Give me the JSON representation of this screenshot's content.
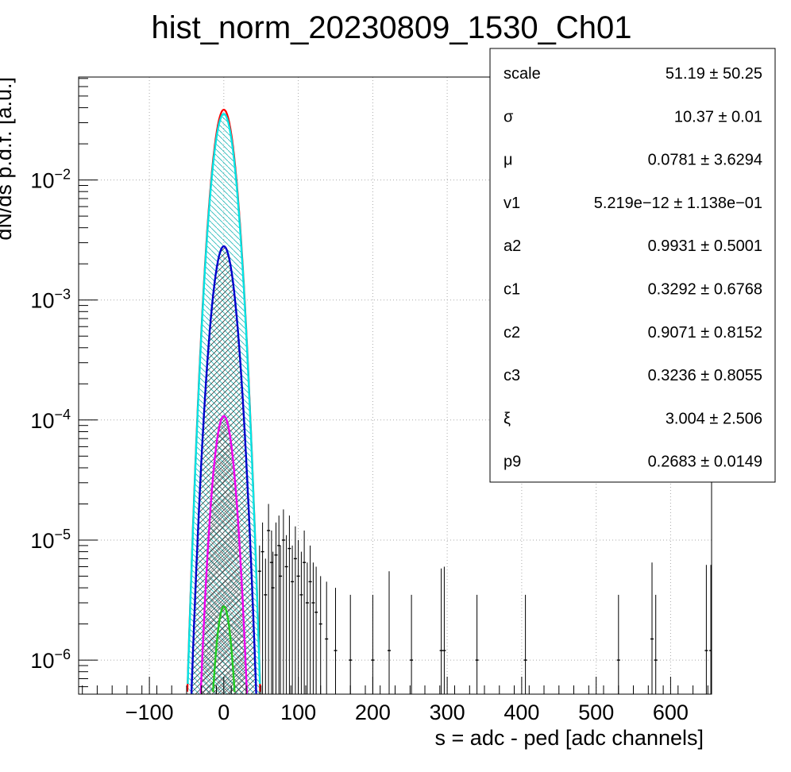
{
  "chart_data": {
    "type": "histogram",
    "title": "hist_norm_20230809_1530_Ch01",
    "xlabel": "s = adc - ped [adc channels]",
    "ylabel": "dN/ds p.d.f. [a.u.]",
    "xlim": [
      -195,
      655
    ],
    "ylim": [
      5.2e-07,
      0.072
    ],
    "yscale": "log",
    "grid": true,
    "x_ticks": [
      -100,
      0,
      100,
      200,
      300,
      400,
      500,
      600
    ],
    "x_tick_labels": [
      "−100",
      "0",
      "100",
      "200",
      "300",
      "400",
      "500",
      "600"
    ],
    "y_ticks": [
      {
        "value": 1e-06,
        "base": "10",
        "exp": "−6"
      },
      {
        "value": 1e-05,
        "base": "10",
        "exp": "−5"
      },
      {
        "value": 0.0001,
        "base": "10",
        "exp": "−4"
      },
      {
        "value": 0.001,
        "base": "10",
        "exp": "−3"
      },
      {
        "value": 0.01,
        "base": "10",
        "exp": "−2"
      }
    ],
    "series": [
      {
        "color": "#ff0000",
        "peak": 0.0385,
        "mu": 0,
        "sigma": 10.37
      },
      {
        "color": "#00e5e5",
        "peak": 0.0355,
        "mu": 0,
        "sigma": 10.37
      },
      {
        "color": "#0000cc",
        "peak": 0.0028,
        "mu": 0,
        "sigma": 10.5
      },
      {
        "color": "#ee00ee",
        "peak": 0.000108,
        "mu": 0,
        "sigma": 9.5
      },
      {
        "color": "#22cc22",
        "peak": 2.8e-06,
        "mu": 0,
        "sigma": 8.0
      }
    ],
    "tail_points": [
      {
        "x": 48,
        "y": 5.5e-06,
        "hi": 9e-06
      },
      {
        "x": 52,
        "y": 8e-06,
        "hi": 1.4e-05
      },
      {
        "x": 56,
        "y": 3.5e-06,
        "hi": 7e-06
      },
      {
        "x": 60,
        "y": 1.2e-05,
        "hi": 2e-05
      },
      {
        "x": 64,
        "y": 6.5e-06,
        "hi": 1.2e-05
      },
      {
        "x": 66,
        "y": 4e-06,
        "hi": 8e-06
      },
      {
        "x": 70,
        "y": 7.5e-06,
        "hi": 1.4e-05
      },
      {
        "x": 74,
        "y": 9e-06,
        "hi": 1.6e-05
      },
      {
        "x": 76,
        "y": 5e-06,
        "hi": 9e-06
      },
      {
        "x": 80,
        "y": 1e-05,
        "hi": 1.8e-05
      },
      {
        "x": 84,
        "y": 6e-06,
        "hi": 1.1e-05
      },
      {
        "x": 88,
        "y": 8.5e-06,
        "hi": 1.6e-05
      },
      {
        "x": 92,
        "y": 4.5e-06,
        "hi": 9e-06
      },
      {
        "x": 96,
        "y": 7e-06,
        "hi": 1.3e-05
      },
      {
        "x": 100,
        "y": 5e-06,
        "hi": 1e-05
      },
      {
        "x": 104,
        "y": 3.5e-06,
        "hi": 8e-06
      },
      {
        "x": 108,
        "y": 6.5e-06,
        "hi": 1.2e-05
      },
      {
        "x": 112,
        "y": 3e-06,
        "hi": 6.5e-06
      },
      {
        "x": 116,
        "y": 4.5e-06,
        "hi": 9e-06
      },
      {
        "x": 120,
        "y": 3e-06,
        "hi": 6.5e-06
      },
      {
        "x": 124,
        "y": 2.5e-06,
        "hi": 6e-06
      },
      {
        "x": 130,
        "y": 2e-06,
        "hi": 5e-06
      },
      {
        "x": 138,
        "y": 1.5e-06,
        "hi": 4.5e-06
      },
      {
        "x": 150,
        "y": 1.2e-06,
        "hi": 4e-06
      },
      {
        "x": 170,
        "y": 1e-06,
        "hi": 3.5e-06
      },
      {
        "x": 200,
        "y": 1e-06,
        "hi": 3.5e-06
      },
      {
        "x": 222,
        "y": 1.2e-06,
        "hi": 5.5e-06
      },
      {
        "x": 252,
        "y": 1e-06,
        "hi": 3.5e-06
      },
      {
        "x": 292,
        "y": 1.2e-06,
        "hi": 5.8e-06
      },
      {
        "x": 296,
        "y": 1.2e-06,
        "hi": 6e-06
      },
      {
        "x": 340,
        "y": 1e-06,
        "hi": 3.5e-06
      },
      {
        "x": 405,
        "y": 1e-06,
        "hi": 3.5e-06
      },
      {
        "x": 530,
        "y": 1e-06,
        "hi": 3.5e-06
      },
      {
        "x": 575,
        "y": 1.5e-06,
        "hi": 6.5e-06
      },
      {
        "x": 580,
        "y": 1e-06,
        "hi": 3.5e-06
      },
      {
        "x": 648,
        "y": 1.2e-06,
        "hi": 6.2e-06
      },
      {
        "x": 654,
        "y": 1.2e-06,
        "hi": 6.2e-06
      }
    ],
    "stats": [
      {
        "name": "scale",
        "value": "51.19 ± 50.25"
      },
      {
        "name": "σ",
        "value": "10.37 ± 0.01"
      },
      {
        "name": "μ",
        "value": "0.0781 ± 3.6294"
      },
      {
        "name": "v1",
        "value": "5.219e−12 ± 1.138e−01"
      },
      {
        "name": "a2",
        "value": "0.9931 ± 0.5001"
      },
      {
        "name": "c1",
        "value": "0.3292 ± 0.6768"
      },
      {
        "name": "c2",
        "value": "0.9071 ± 0.8152"
      },
      {
        "name": "c3",
        "value": "0.3236 ± 0.8055"
      },
      {
        "name": "ξ",
        "value": "3.004 ± 2.506"
      },
      {
        "name": "p9",
        "value": "0.2683 ± 0.0149"
      }
    ]
  }
}
